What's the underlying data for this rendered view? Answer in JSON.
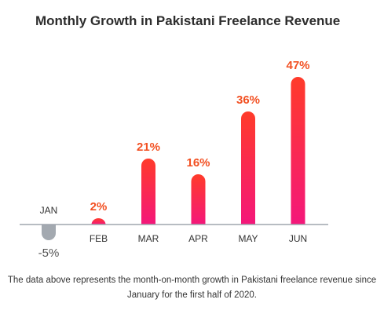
{
  "title": "Monthly Growth in Pakistani Freelance Revenue",
  "caption": {
    "line1": "The data above represents the month-on-month growth in Pakistani freelance revenue since",
    "line2": "January for the first half of 2020."
  },
  "colors": {
    "positive_bottom": "#f4177a",
    "positive_top": "#ff3b2a",
    "negative": "#a3a9b0",
    "positive_label": "#f25022",
    "negative_label": "#555555",
    "category_label": "#333333",
    "baseline": "#9fa6ad"
  },
  "chart_data": {
    "type": "bar",
    "title": "Monthly Growth in Pakistani Freelance Revenue",
    "xlabel": "",
    "ylabel": "",
    "categories": [
      "JAN",
      "FEB",
      "MAR",
      "APR",
      "MAY",
      "JUN"
    ],
    "values": [
      -5,
      2,
      21,
      16,
      36,
      47
    ],
    "value_labels": [
      "-5%",
      "2%",
      "21%",
      "16%",
      "36%",
      "47%"
    ],
    "unit": "%",
    "ylim": [
      -6,
      48
    ],
    "grid": false,
    "legend": "none"
  }
}
